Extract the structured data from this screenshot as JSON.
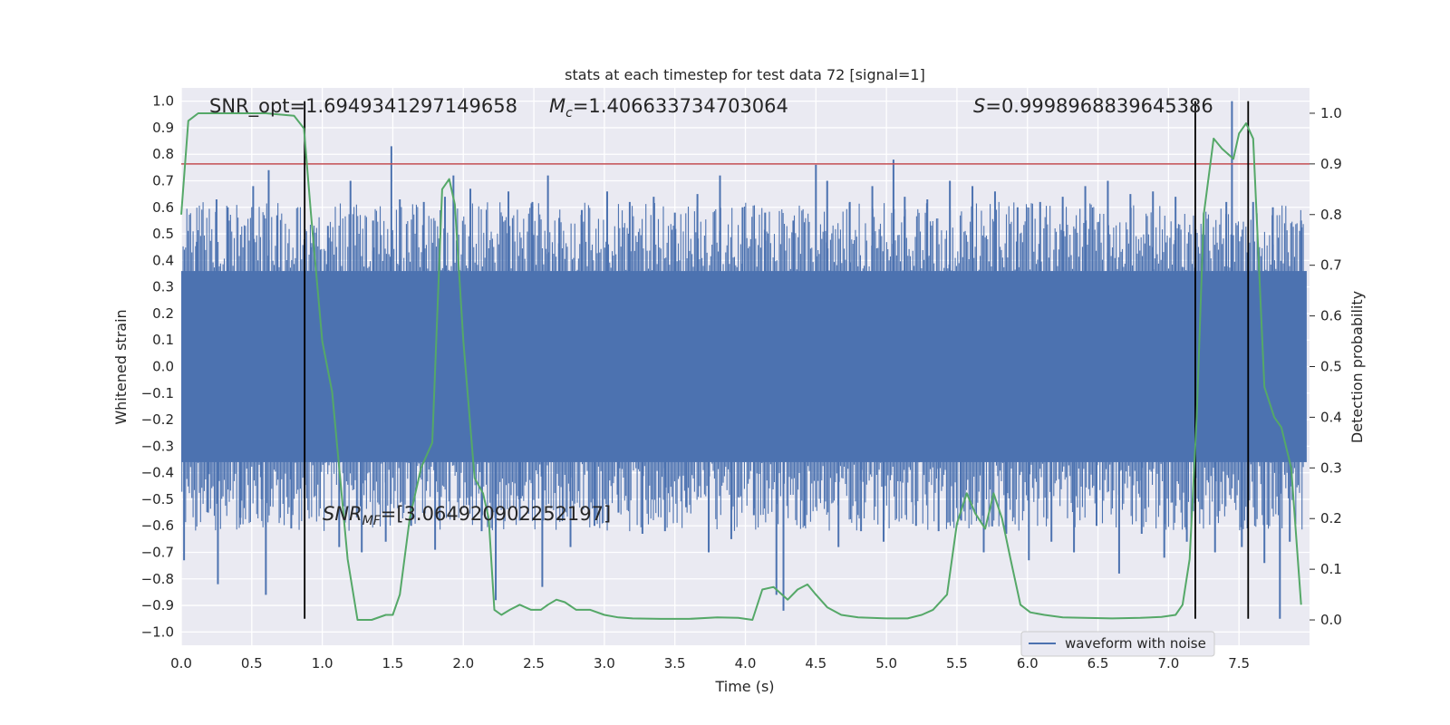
{
  "chart_data": {
    "type": "line",
    "title": "stats at each timestep for test data 72 [signal=1]",
    "xlabel": "Time (s)",
    "ylabel_left": "Whitened strain",
    "ylabel_right": "Detection probability",
    "xlim": [
      0.0,
      8.0
    ],
    "ylim_left": [
      -1.05,
      1.05
    ],
    "ylim_right": [
      -0.05,
      1.05
    ],
    "x_ticks": [
      "0.0",
      "0.5",
      "1.0",
      "1.5",
      "2.0",
      "2.5",
      "3.0",
      "3.5",
      "4.0",
      "4.5",
      "5.0",
      "5.5",
      "6.0",
      "6.5",
      "7.0",
      "7.5"
    ],
    "y_left_ticks": [
      "1.0",
      "0.9",
      "0.8",
      "0.7",
      "0.6",
      "0.5",
      "0.4",
      "0.3",
      "0.2",
      "0.1",
      "0.0",
      "-0.1",
      "-0.2",
      "-0.3",
      "-0.4",
      "-0.5",
      "-0.6",
      "-0.7",
      "-0.8",
      "-0.9",
      "-1.0"
    ],
    "y_right_ticks": [
      "1.0",
      "0.9",
      "0.8",
      "0.7",
      "0.6",
      "0.5",
      "0.4",
      "0.3",
      "0.2",
      "0.1",
      "0.0"
    ],
    "grid": true,
    "legend": {
      "position": "lower-right",
      "entries": [
        "waveform with noise"
      ]
    },
    "annotations": {
      "snr_opt": "SNR_opt=1.6949341297149658",
      "mc_symbol": "M",
      "mc_subscript": "c",
      "mc_value": "=1.406633734703064",
      "s_symbol": "S",
      "s_value": "=0.9998968839645386",
      "snr_mf_symbol": "SNR",
      "snr_mf_subscript": "MF",
      "snr_mf_value": "=[3.064920902252197]"
    },
    "threshold_line": {
      "axis": "right",
      "y": 0.9,
      "color": "#c44e52"
    },
    "vertical_lines": [
      {
        "x": 0.875,
        "ymin": -0.95,
        "ymax": 1.0
      },
      {
        "x": 7.19,
        "ymin": -0.95,
        "ymax": 1.0
      },
      {
        "x": 7.565,
        "ymin": -0.95,
        "ymax": 1.0
      }
    ],
    "series": [
      {
        "name": "waveform with noise",
        "axis": "left",
        "color": "#4c72b0",
        "kind": "noise",
        "core_band": [
          -0.36,
          0.36
        ],
        "spike_peaks": [
          {
            "x": 1.49,
            "y": 0.83
          },
          {
            "x": 7.45,
            "y": 1.0
          },
          {
            "x": 0.62,
            "y": 0.74
          },
          {
            "x": 4.5,
            "y": 0.76
          },
          {
            "x": 5.05,
            "y": 0.78
          },
          {
            "x": 2.6,
            "y": 0.72
          },
          {
            "x": 1.93,
            "y": 0.72
          },
          {
            "x": 0.6,
            "y": -0.86
          },
          {
            "x": 0.26,
            "y": -0.82
          },
          {
            "x": 4.27,
            "y": -0.92
          },
          {
            "x": 7.79,
            "y": -0.95
          },
          {
            "x": 2.23,
            "y": -0.88
          }
        ],
        "dense_spikes": [
          {
            "x": 0.02,
            "y": -0.73
          },
          {
            "x": 0.11,
            "y": 0.47
          },
          {
            "x": 0.19,
            "y": -0.55
          },
          {
            "x": 0.25,
            "y": 0.63
          },
          {
            "x": 0.33,
            "y": 0.6
          },
          {
            "x": 0.42,
            "y": -0.57
          },
          {
            "x": 0.51,
            "y": 0.68
          },
          {
            "x": 0.57,
            "y": -0.5
          },
          {
            "x": 0.68,
            "y": 0.57
          },
          {
            "x": 0.78,
            "y": -0.61
          },
          {
            "x": 0.92,
            "y": 0.45
          },
          {
            "x": 1.04,
            "y": 0.53
          },
          {
            "x": 1.12,
            "y": -0.68
          },
          {
            "x": 1.2,
            "y": 0.7
          },
          {
            "x": 1.28,
            "y": -0.7
          },
          {
            "x": 1.36,
            "y": 0.55
          },
          {
            "x": 1.45,
            "y": -0.66
          },
          {
            "x": 1.55,
            "y": 0.63
          },
          {
            "x": 1.63,
            "y": -0.6
          },
          {
            "x": 1.72,
            "y": 0.62
          },
          {
            "x": 1.8,
            "y": -0.69
          },
          {
            "x": 1.87,
            "y": 0.64
          },
          {
            "x": 2.05,
            "y": 0.67
          },
          {
            "x": 2.13,
            "y": -0.62
          },
          {
            "x": 2.32,
            "y": 0.66
          },
          {
            "x": 2.4,
            "y": -0.58
          },
          {
            "x": 2.49,
            "y": 0.62
          },
          {
            "x": 2.56,
            "y": -0.83
          },
          {
            "x": 2.68,
            "y": 0.56
          },
          {
            "x": 2.76,
            "y": -0.68
          },
          {
            "x": 2.84,
            "y": 0.59
          },
          {
            "x": 2.93,
            "y": -0.6
          },
          {
            "x": 3.02,
            "y": 0.66
          },
          {
            "x": 3.1,
            "y": -0.55
          },
          {
            "x": 3.18,
            "y": 0.62
          },
          {
            "x": 3.27,
            "y": -0.63
          },
          {
            "x": 3.35,
            "y": 0.64
          },
          {
            "x": 3.43,
            "y": -0.62
          },
          {
            "x": 3.5,
            "y": 0.58
          },
          {
            "x": 3.58,
            "y": -0.53
          },
          {
            "x": 3.66,
            "y": 0.65
          },
          {
            "x": 3.74,
            "y": -0.7
          },
          {
            "x": 3.82,
            "y": 0.72
          },
          {
            "x": 3.9,
            "y": -0.65
          },
          {
            "x": 3.98,
            "y": 0.6
          },
          {
            "x": 4.06,
            "y": -0.56
          },
          {
            "x": 4.14,
            "y": 0.58
          },
          {
            "x": 4.22,
            "y": -0.86
          },
          {
            "x": 4.34,
            "y": 0.55
          },
          {
            "x": 4.42,
            "y": -0.6
          },
          {
            "x": 4.58,
            "y": 0.7
          },
          {
            "x": 4.66,
            "y": -0.68
          },
          {
            "x": 4.74,
            "y": 0.62
          },
          {
            "x": 4.82,
            "y": -0.62
          },
          {
            "x": 4.9,
            "y": 0.68
          },
          {
            "x": 4.98,
            "y": -0.66
          },
          {
            "x": 5.13,
            "y": 0.64
          },
          {
            "x": 5.21,
            "y": -0.6
          },
          {
            "x": 5.29,
            "y": 0.63
          },
          {
            "x": 5.37,
            "y": -0.62
          },
          {
            "x": 5.45,
            "y": 0.7
          },
          {
            "x": 5.53,
            "y": -0.58
          },
          {
            "x": 5.61,
            "y": 0.68
          },
          {
            "x": 5.69,
            "y": -0.7
          },
          {
            "x": 5.77,
            "y": 0.66
          },
          {
            "x": 5.85,
            "y": -0.63
          },
          {
            "x": 5.93,
            "y": 0.6
          },
          {
            "x": 6.01,
            "y": -0.73
          },
          {
            "x": 6.09,
            "y": 0.62
          },
          {
            "x": 6.17,
            "y": -0.66
          },
          {
            "x": 6.25,
            "y": 0.64
          },
          {
            "x": 6.33,
            "y": -0.7
          },
          {
            "x": 6.41,
            "y": 0.68
          },
          {
            "x": 6.49,
            "y": -0.6
          },
          {
            "x": 6.57,
            "y": 0.7
          },
          {
            "x": 6.65,
            "y": -0.78
          },
          {
            "x": 6.73,
            "y": 0.65
          },
          {
            "x": 6.81,
            "y": -0.63
          },
          {
            "x": 6.89,
            "y": 0.66
          },
          {
            "x": 6.97,
            "y": -0.72
          },
          {
            "x": 7.05,
            "y": 0.64
          },
          {
            "x": 7.13,
            "y": -0.66
          },
          {
            "x": 7.25,
            "y": 0.58
          },
          {
            "x": 7.33,
            "y": -0.7
          },
          {
            "x": 7.41,
            "y": 0.62
          },
          {
            "x": 7.52,
            "y": -0.68
          },
          {
            "x": 7.6,
            "y": 0.62
          },
          {
            "x": 7.68,
            "y": -0.74
          },
          {
            "x": 7.74,
            "y": 0.6
          },
          {
            "x": 7.86,
            "y": -0.66
          },
          {
            "x": 7.94,
            "y": 0.55
          }
        ]
      },
      {
        "name": "detection probability",
        "axis": "right",
        "color": "#55a868",
        "x": [
          0.0,
          0.05,
          0.12,
          0.25,
          0.4,
          0.6,
          0.8,
          0.87,
          0.92,
          1.0,
          1.07,
          1.12,
          1.18,
          1.25,
          1.35,
          1.45,
          1.5,
          1.55,
          1.62,
          1.7,
          1.78,
          1.85,
          1.9,
          1.94,
          2.0,
          2.08,
          2.14,
          2.18,
          2.22,
          2.27,
          2.33,
          2.4,
          2.48,
          2.55,
          2.6,
          2.66,
          2.72,
          2.8,
          2.9,
          3.0,
          3.1,
          3.2,
          3.4,
          3.6,
          3.8,
          3.95,
          4.05,
          4.12,
          4.2,
          4.3,
          4.37,
          4.44,
          4.5,
          4.58,
          4.68,
          4.8,
          5.0,
          5.15,
          5.25,
          5.33,
          5.43,
          5.5,
          5.57,
          5.63,
          5.7,
          5.76,
          5.82,
          5.88,
          5.95,
          6.02,
          6.12,
          6.25,
          6.4,
          6.6,
          6.8,
          6.95,
          7.05,
          7.1,
          7.15,
          7.2,
          7.25,
          7.32,
          7.38,
          7.46,
          7.5,
          7.55,
          7.6,
          7.68,
          7.75,
          7.8,
          7.87,
          7.94
        ],
        "y": [
          0.8,
          0.985,
          1.0,
          1.0,
          1.0,
          1.0,
          0.995,
          0.97,
          0.8,
          0.55,
          0.45,
          0.3,
          0.12,
          0.0,
          0.0,
          0.01,
          0.01,
          0.05,
          0.2,
          0.3,
          0.35,
          0.85,
          0.87,
          0.82,
          0.55,
          0.28,
          0.25,
          0.2,
          0.02,
          0.01,
          0.02,
          0.03,
          0.02,
          0.02,
          0.03,
          0.04,
          0.035,
          0.02,
          0.02,
          0.01,
          0.005,
          0.003,
          0.002,
          0.002,
          0.005,
          0.004,
          0.0,
          0.06,
          0.065,
          0.04,
          0.06,
          0.07,
          0.05,
          0.025,
          0.01,
          0.005,
          0.003,
          0.003,
          0.01,
          0.02,
          0.05,
          0.19,
          0.25,
          0.21,
          0.18,
          0.25,
          0.2,
          0.12,
          0.03,
          0.015,
          0.01,
          0.005,
          0.004,
          0.003,
          0.004,
          0.006,
          0.01,
          0.03,
          0.12,
          0.4,
          0.8,
          0.95,
          0.93,
          0.91,
          0.96,
          0.98,
          0.95,
          0.46,
          0.4,
          0.38,
          0.3,
          0.03
        ]
      }
    ]
  }
}
